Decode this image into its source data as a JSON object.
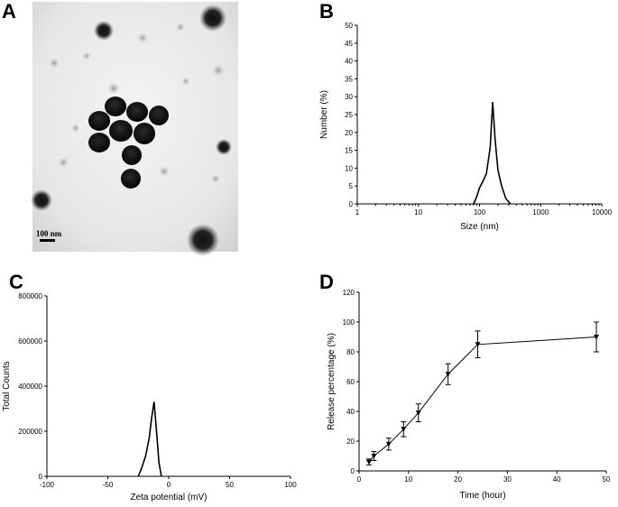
{
  "panels": {
    "a": "A",
    "b": "B",
    "c": "C",
    "d": "D"
  },
  "micrograph": {
    "scale_bar_label": "100 nm"
  },
  "chart_data": [
    {
      "panel": "B",
      "type": "line",
      "xlabel": "Size (nm)",
      "ylabel": "Number (%)",
      "xscale": "log",
      "xlim": [
        1,
        10000
      ],
      "ylim": [
        0,
        50
      ],
      "xticks": [
        1,
        10,
        100,
        1000,
        10000
      ],
      "xtick_labels": [
        "1",
        "10",
        "100",
        "1000",
        "10000"
      ],
      "yticks": [
        0,
        5,
        10,
        15,
        20,
        25,
        30,
        35,
        40,
        45,
        50
      ],
      "ytick_labels": [
        "0",
        "5",
        "10",
        "15",
        "20",
        "25",
        "30",
        "35",
        "40",
        "45",
        "50"
      ],
      "series": [
        {
          "x": [
            80,
            90,
            100,
            115,
            130,
            150,
            164,
            180,
            200,
            230,
            270,
            320
          ],
          "y": [
            0,
            2,
            4.5,
            6.5,
            8.5,
            16,
            28.5,
            18,
            9.5,
            5,
            1.5,
            0
          ]
        }
      ]
    },
    {
      "panel": "C",
      "type": "line",
      "xlabel": "Zeta potential (mV)",
      "ylabel": "Total Counts",
      "xlim": [
        -100,
        100
      ],
      "ylim": [
        0,
        800000
      ],
      "xticks": [
        -100,
        -50,
        0,
        50,
        100
      ],
      "xtick_labels": [
        "-100",
        "-50",
        "0",
        "50",
        "100"
      ],
      "yticks": [
        0,
        200000,
        400000,
        600000,
        800000
      ],
      "ytick_labels": [
        "0",
        "200000",
        "400000",
        "600000",
        "800000"
      ],
      "series": [
        {
          "x": [
            -25,
            -22,
            -19,
            -16,
            -14,
            -12,
            -10,
            -8,
            -6
          ],
          "y": [
            0,
            40000,
            90000,
            170000,
            260000,
            330000,
            200000,
            60000,
            0
          ]
        }
      ]
    },
    {
      "panel": "D",
      "type": "line",
      "xlabel": "Time (hour)",
      "ylabel": "Release percentage (%)",
      "xlim": [
        0,
        50
      ],
      "ylim": [
        0,
        120
      ],
      "xticks": [
        0,
        10,
        20,
        30,
        40,
        50
      ],
      "xtick_labels": [
        "0",
        "10",
        "20",
        "30",
        "40",
        "50"
      ],
      "yticks": [
        0,
        20,
        40,
        60,
        80,
        100,
        120
      ],
      "ytick_labels": [
        "0",
        "20",
        "40",
        "60",
        "80",
        "100",
        "120"
      ],
      "marker": "triangle-down",
      "series": [
        {
          "x": [
            2,
            3,
            6,
            9,
            12,
            18,
            24,
            48
          ],
          "y": [
            6,
            10,
            18,
            28,
            39,
            65,
            85,
            90
          ],
          "err": [
            2,
            3,
            4,
            5,
            6,
            7,
            9,
            10
          ]
        }
      ]
    }
  ]
}
